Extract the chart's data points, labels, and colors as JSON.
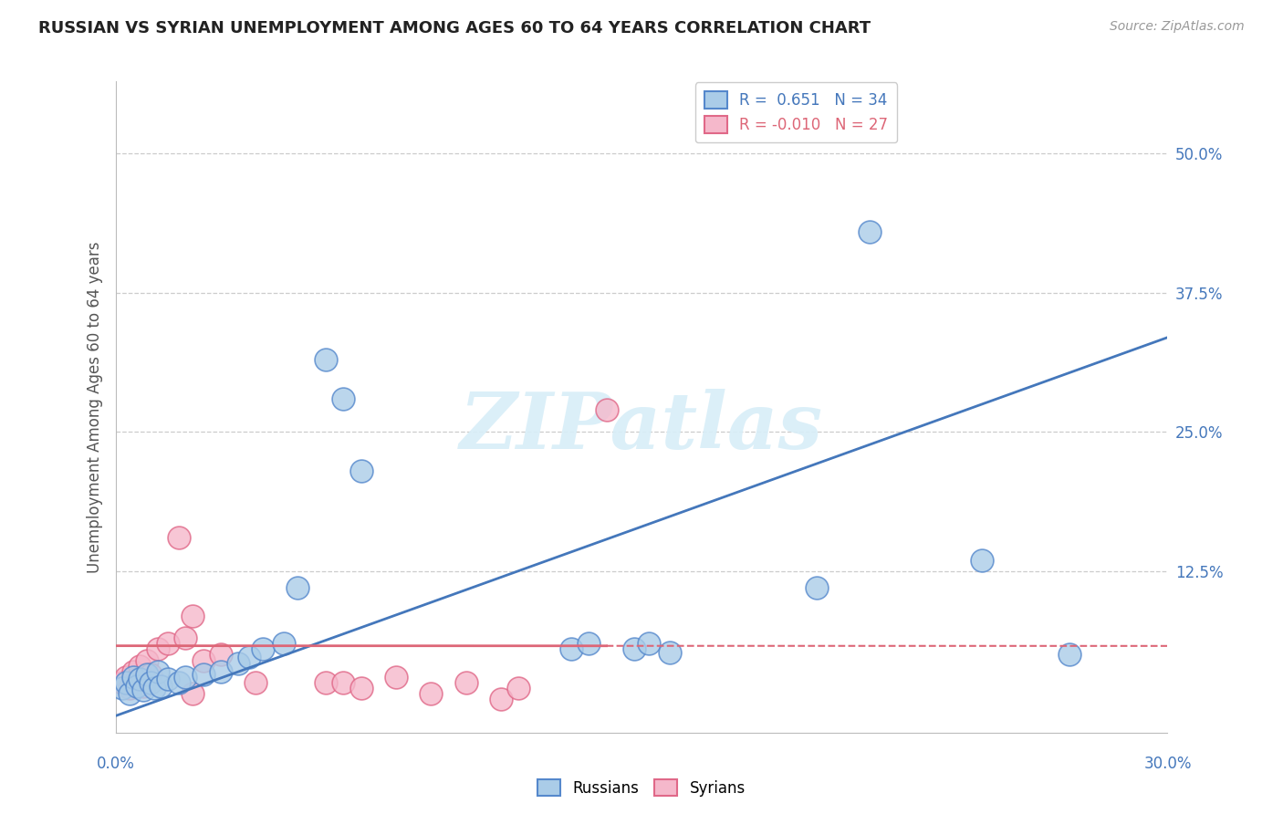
{
  "title": "RUSSIAN VS SYRIAN UNEMPLOYMENT AMONG AGES 60 TO 64 YEARS CORRELATION CHART",
  "source": "Source: ZipAtlas.com",
  "ylabel": "Unemployment Among Ages 60 to 64 years",
  "ytick_labels": [
    "50.0%",
    "37.5%",
    "25.0%",
    "12.5%"
  ],
  "ytick_values": [
    0.5,
    0.375,
    0.25,
    0.125
  ],
  "xlim": [
    0.0,
    0.3
  ],
  "ylim": [
    -0.02,
    0.565
  ],
  "russian_R": "0.651",
  "russian_N": "34",
  "syrian_R": "-0.010",
  "syrian_N": "27",
  "russian_fill_color": "#aacce8",
  "syrian_fill_color": "#f5b8cb",
  "russian_edge_color": "#5588cc",
  "syrian_edge_color": "#e06888",
  "russian_line_color": "#4477bb",
  "syrian_line_color": "#dd6677",
  "watermark_text": "ZIPatlas",
  "watermark_color": "#d8eef8",
  "russians_x": [
    0.002,
    0.003,
    0.004,
    0.005,
    0.006,
    0.007,
    0.008,
    0.009,
    0.01,
    0.011,
    0.012,
    0.013,
    0.015,
    0.018,
    0.02,
    0.025,
    0.03,
    0.035,
    0.038,
    0.042,
    0.048,
    0.052,
    0.06,
    0.065,
    0.07,
    0.13,
    0.135,
    0.148,
    0.152,
    0.158,
    0.2,
    0.215,
    0.247,
    0.272
  ],
  "russians_y": [
    0.02,
    0.025,
    0.015,
    0.03,
    0.022,
    0.028,
    0.018,
    0.032,
    0.025,
    0.02,
    0.035,
    0.022,
    0.028,
    0.025,
    0.03,
    0.032,
    0.035,
    0.042,
    0.048,
    0.055,
    0.06,
    0.11,
    0.315,
    0.28,
    0.215,
    0.055,
    0.06,
    0.055,
    0.06,
    0.052,
    0.11,
    0.43,
    0.135,
    0.05
  ],
  "syrians_x": [
    0.002,
    0.003,
    0.004,
    0.005,
    0.006,
    0.007,
    0.008,
    0.009,
    0.01,
    0.012,
    0.015,
    0.02,
    0.025,
    0.03,
    0.04,
    0.06,
    0.065,
    0.07,
    0.08,
    0.09,
    0.1,
    0.11,
    0.115,
    0.018,
    0.022,
    0.14,
    0.022
  ],
  "syrians_y": [
    0.025,
    0.03,
    0.02,
    0.035,
    0.028,
    0.04,
    0.022,
    0.045,
    0.032,
    0.055,
    0.06,
    0.065,
    0.045,
    0.05,
    0.025,
    0.025,
    0.025,
    0.02,
    0.03,
    0.015,
    0.025,
    0.01,
    0.02,
    0.155,
    0.015,
    0.27,
    0.085
  ],
  "russian_line_x0": 0.0,
  "russian_line_y0": -0.005,
  "russian_line_x1": 0.3,
  "russian_line_y1": 0.335,
  "syrian_line_y": 0.058,
  "syrian_line_slope": -0.0005
}
